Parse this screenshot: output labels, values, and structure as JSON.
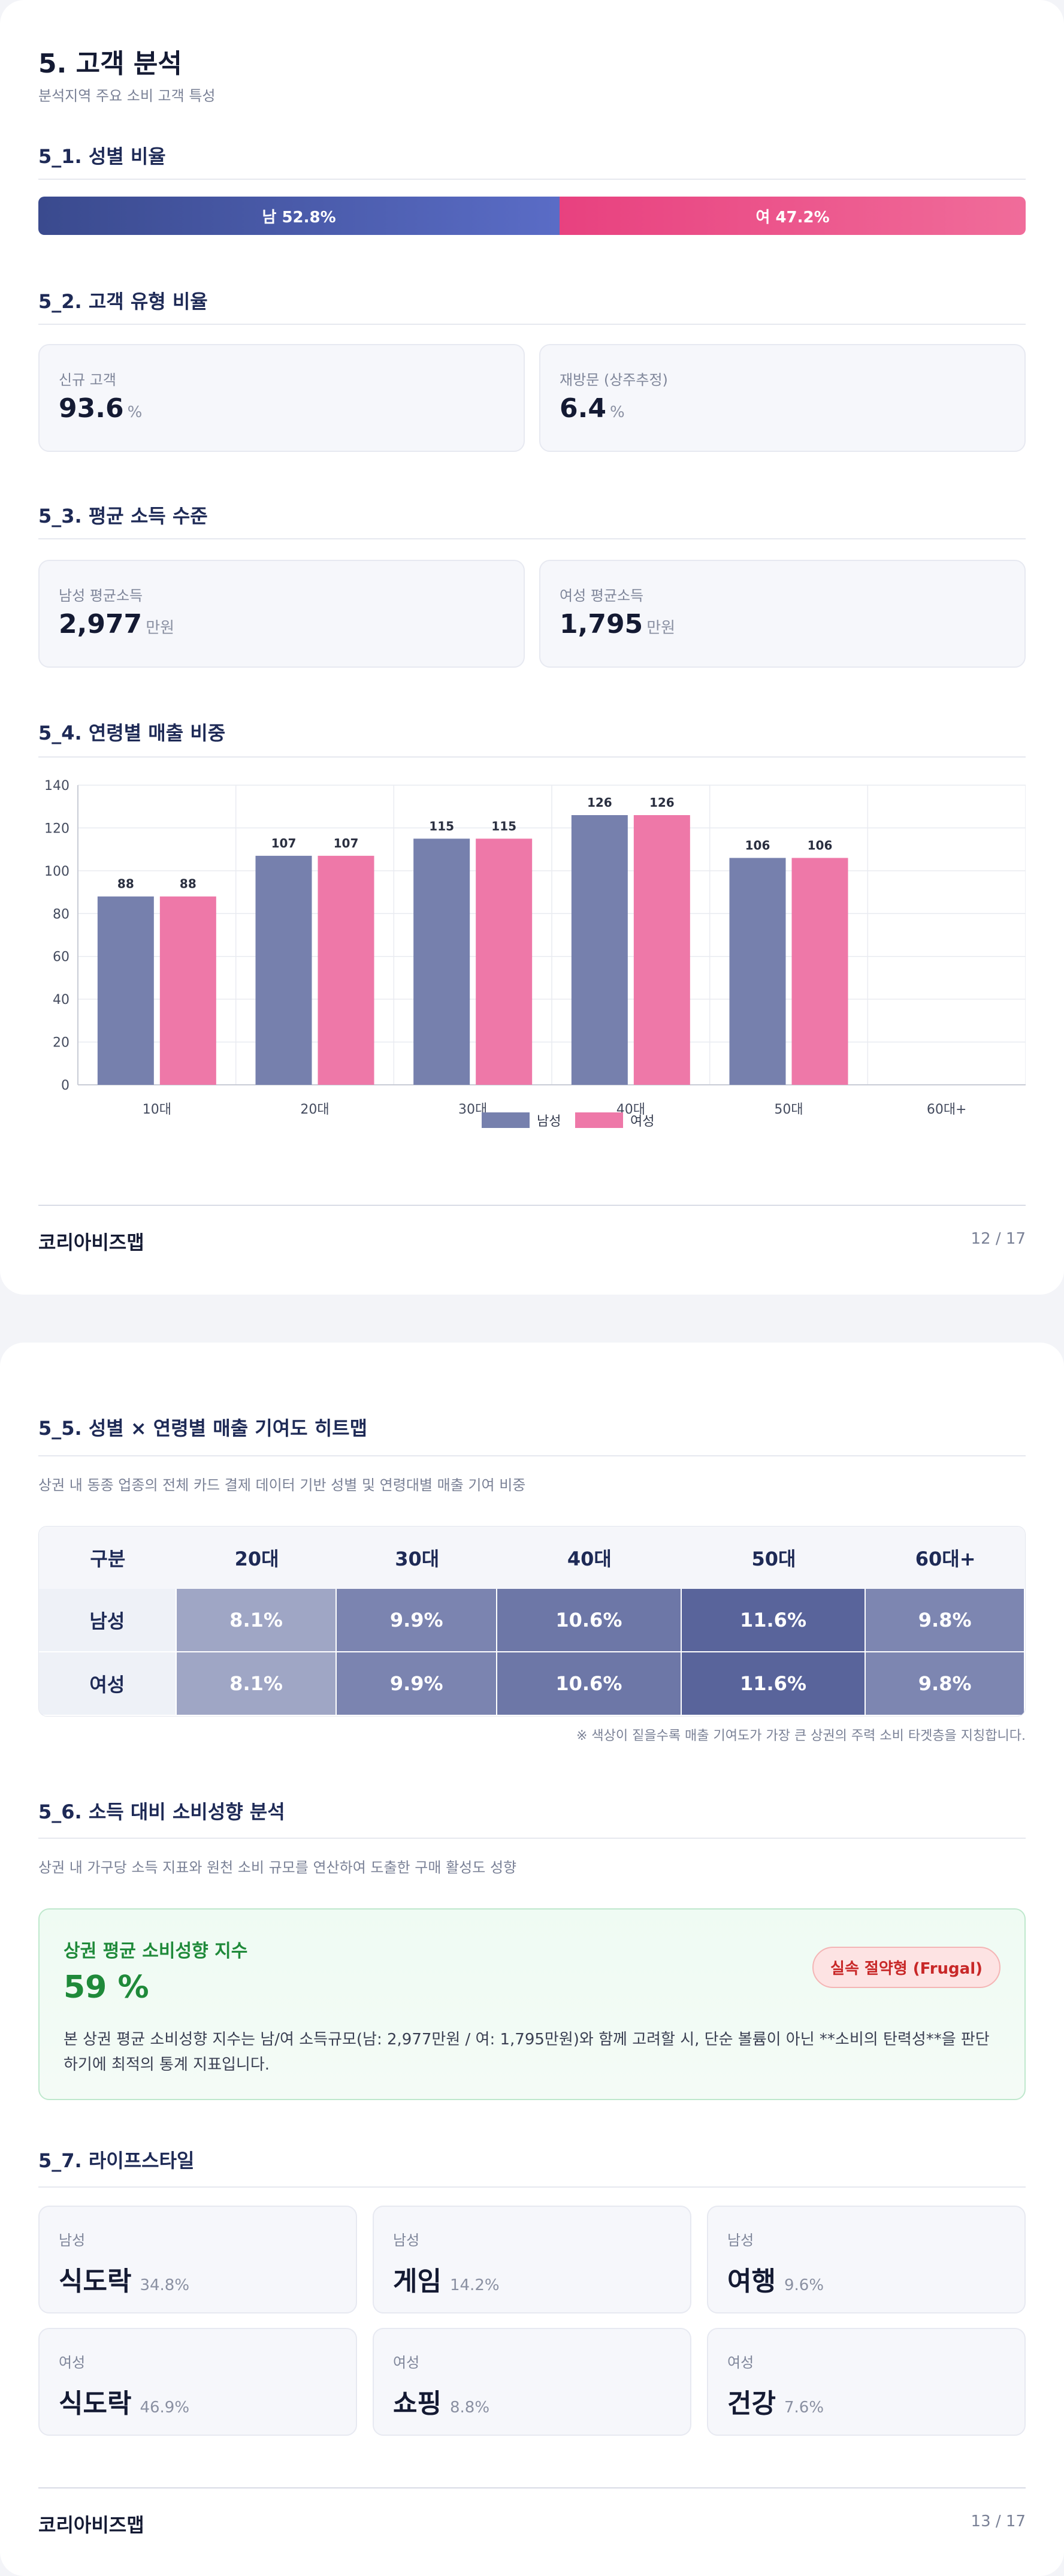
{
  "page1": {
    "title": "5. 고객 분석",
    "subtitle": "분석지역 주요 소비 고객 특성",
    "s1_title": "5_1. 성별 비율",
    "gender": {
      "male_label": "남 52.8%",
      "female_label": "여 47.2%",
      "male_pct": 52.8,
      "female_pct": 47.2
    },
    "s2_title": "5_2. 고객 유형 비율",
    "customer_types": [
      {
        "label": "신규 고객",
        "value": "93.6",
        "unit": "%"
      },
      {
        "label": "재방문 (상주추정)",
        "value": "6.4",
        "unit": "%"
      }
    ],
    "s3_title": "5_3. 평균 소득 수준",
    "income": [
      {
        "label": "남성 평균소득",
        "value": "2,977",
        "unit": "만원"
      },
      {
        "label": "여성 평균소득",
        "value": "1,795",
        "unit": "만원"
      }
    ],
    "s4_title": "5_4. 연령별 매출 비중",
    "brand": "코리아비즈맵",
    "page_num": "12 / 17"
  },
  "chart_data": {
    "type": "bar",
    "categories": [
      "10대",
      "20대",
      "30대",
      "40대",
      "50대",
      "60대+"
    ],
    "series": [
      {
        "name": "남성",
        "color": "#7680ad",
        "values": [
          88,
          107,
          115,
          126,
          106,
          null
        ]
      },
      {
        "name": "여성",
        "color": "#ee78a8",
        "values": [
          88,
          107,
          115,
          126,
          106,
          null
        ]
      }
    ],
    "yticks": [
      "0",
      "20",
      "40",
      "60",
      "80",
      "100",
      "120",
      "140"
    ],
    "ylim": [
      0,
      140
    ],
    "grid": true,
    "legend": "bottom"
  },
  "page2": {
    "s5_title": "5_5. 성별 × 연령별 매출 기여도 히트맵",
    "s5_desc": "상권 내 동종 업종의 전체 카드 결제 데이터 기반 성별 및 연령대별 매출 기여 비중",
    "heatmap": {
      "corner": "구분",
      "columns": [
        "20대",
        "30대",
        "40대",
        "50대",
        "60대+"
      ],
      "rows": [
        {
          "label": "남성",
          "cells": [
            "8.1%",
            "9.9%",
            "10.6%",
            "11.6%",
            "9.8%"
          ],
          "levels": [
            8.1,
            9.9,
            10.6,
            11.6,
            9.8
          ]
        },
        {
          "label": "여성",
          "cells": [
            "8.1%",
            "9.9%",
            "10.6%",
            "11.6%",
            "9.8%"
          ],
          "levels": [
            8.1,
            9.9,
            10.6,
            11.6,
            9.8
          ]
        }
      ],
      "note": "※ 색상이 짙을수록 매출 기여도가 가장 큰 상권의 주력 소비 타겟층을 지칭합니다."
    },
    "s6_title": "5_6. 소득 대비 소비성향 분석",
    "s6_desc": "상권 내 가구당 소득 지표와 원천 소비 규모를 연산하여 도출한 구매 활성도 성향",
    "propensity": {
      "title": "상권 평균 소비성향 지수",
      "value": "59 %",
      "badge": "실속 절약형 (Frugal)",
      "text": "본 상권 평균 소비성향 지수는 남/여 소득규모(남: 2,977만원 / 여: 1,795만원)와 함께 고려할 시, 단순 볼륨이 아닌 **소비의 탄력성**을 판단하기에 최적의 통계 지표입니다."
    },
    "s7_title": "5_7. 라이프스타일",
    "lifestyle": [
      {
        "gender": "남성",
        "label": "식도락",
        "pct": "34.8%"
      },
      {
        "gender": "남성",
        "label": "게임",
        "pct": "14.2%"
      },
      {
        "gender": "남성",
        "label": "여행",
        "pct": "9.6%"
      },
      {
        "gender": "여성",
        "label": "식도락",
        "pct": "46.9%"
      },
      {
        "gender": "여성",
        "label": "쇼핑",
        "pct": "8.8%"
      },
      {
        "gender": "여성",
        "label": "건강",
        "pct": "7.6%"
      }
    ],
    "brand": "코리아비즈맵",
    "page_num": "13 / 17"
  }
}
